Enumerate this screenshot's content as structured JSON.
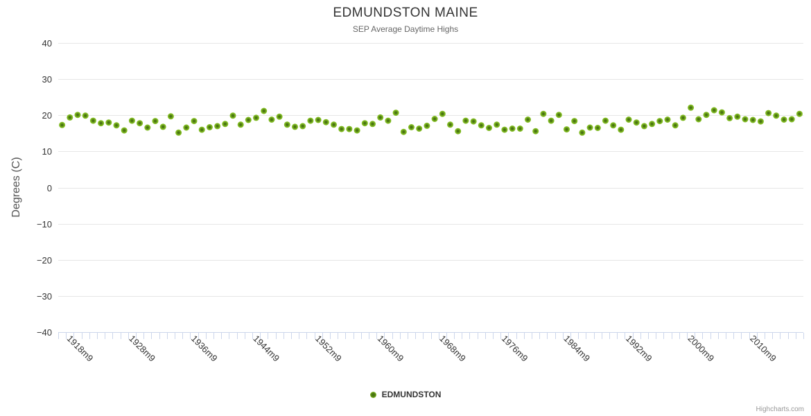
{
  "header": {
    "title": "EDMUNDSTON MAINE",
    "subtitle": "SEP Average Daytime Highs"
  },
  "legend": {
    "label": "EDMUNDSTON"
  },
  "credits": {
    "label": "Highcharts.com"
  },
  "colors": {
    "marker_outer": "#86c226",
    "marker_mid": "#76ad1d",
    "marker_core": "#44700f",
    "grid": "#e6e6e6",
    "axis_line": "#ccd6eb",
    "tick_mark": "#ccd6eb",
    "tick_label": "#333333",
    "title": "#333333",
    "subtitle": "#666666",
    "credits_text": "#999999"
  },
  "chart_data": {
    "type": "scatter",
    "title": "EDMUNDSTON MAINE",
    "subtitle": "SEP Average Daytime Highs",
    "xlabel": "",
    "ylabel": "Degrees (C)",
    "ylim": [
      -40,
      40
    ],
    "ytick_step": 10,
    "ytick_labels": [
      "40",
      "30",
      "20",
      "10",
      "0",
      "−10",
      "−20",
      "−30",
      "−40"
    ],
    "grid": true,
    "legend_position": "bottom-center",
    "series_name": "EDMUNDSTON",
    "xlabels_shown": [
      {
        "text": "1918m9",
        "index": 1
      },
      {
        "text": "1928m9",
        "index": 9
      },
      {
        "text": "1936m9",
        "index": 17
      },
      {
        "text": "1944m9",
        "index": 25
      },
      {
        "text": "1952m9",
        "index": 33
      },
      {
        "text": "1960m9",
        "index": 41
      },
      {
        "text": "1968m9",
        "index": 49
      },
      {
        "text": "1976m9",
        "index": 57
      },
      {
        "text": "1984m9",
        "index": 65
      },
      {
        "text": "1992m9",
        "index": 73
      },
      {
        "text": "2000m9",
        "index": 81
      },
      {
        "text": "2010m9",
        "index": 89
      }
    ],
    "categories": [
      "1917m9",
      "1918m9",
      "1919m9",
      "1921m9",
      "1922m9",
      "1923m9",
      "1924m9",
      "1926m9",
      "1927m9",
      "1928m9",
      "1929m9",
      "1930m9",
      "1931m9",
      "1932m9",
      "1933m9",
      "1934m9",
      "1935m9",
      "1936m9",
      "1937m9",
      "1938m9",
      "1939m9",
      "1940m9",
      "1941m9",
      "1942m9",
      "1943m9",
      "1944m9",
      "1945m9",
      "1946m9",
      "1947m9",
      "1948m9",
      "1949m9",
      "1950m9",
      "1951m9",
      "1952m9",
      "1953m9",
      "1954m9",
      "1955m9",
      "1956m9",
      "1957m9",
      "1958m9",
      "1959m9",
      "1960m9",
      "1961m9",
      "1962m9",
      "1963m9",
      "1964m9",
      "1965m9",
      "1966m9",
      "1967m9",
      "1968m9",
      "1969m9",
      "1970m9",
      "1971m9",
      "1972m9",
      "1973m9",
      "1974m9",
      "1975m9",
      "1976m9",
      "1977m9",
      "1978m9",
      "1979m9",
      "1980m9",
      "1981m9",
      "1982m9",
      "1983m9",
      "1984m9",
      "1985m9",
      "1986m9",
      "1987m9",
      "1988m9",
      "1989m9",
      "1990m9",
      "1991m9",
      "1992m9",
      "1993m9",
      "1994m9",
      "1995m9",
      "1996m9",
      "1997m9",
      "1998m9",
      "1999m9",
      "2000m9",
      "2001m9",
      "2002m9",
      "2004m9",
      "2005m9",
      "2006m9",
      "2008m9",
      "2009m9",
      "2010m9",
      "2011m9",
      "2012m9",
      "2013m9",
      "2014m9",
      "2015m9",
      "2016m9"
    ],
    "values": [
      17.3,
      19.4,
      20.1,
      19.9,
      18.5,
      17.8,
      18.0,
      17.2,
      15.8,
      18.5,
      17.8,
      16.6,
      18.4,
      16.8,
      19.7,
      15.2,
      16.6,
      18.4,
      16.0,
      16.7,
      17.0,
      17.6,
      19.9,
      17.4,
      18.7,
      19.3,
      21.2,
      18.8,
      19.6,
      17.4,
      16.8,
      17.0,
      18.5,
      18.7,
      18.1,
      17.4,
      16.2,
      16.2,
      15.8,
      17.8,
      17.6,
      19.4,
      18.5,
      20.7,
      15.4,
      16.7,
      16.3,
      17.1,
      19.0,
      20.4,
      17.4,
      15.6,
      18.5,
      18.3,
      17.2,
      16.5,
      17.4,
      16.0,
      16.3,
      16.3,
      18.8,
      15.6,
      20.4,
      18.5,
      20.1,
      16.1,
      18.4,
      15.2,
      16.6,
      16.5,
      18.5,
      17.2,
      16.0,
      18.8,
      18.0,
      17.0,
      17.6,
      18.4,
      18.8,
      17.2,
      19.3,
      22.1,
      18.9,
      20.1,
      21.4,
      20.8,
      19.2,
      19.6,
      18.9,
      18.7,
      18.3,
      20.6,
      19.9,
      18.8,
      18.9,
      20.4
    ]
  }
}
